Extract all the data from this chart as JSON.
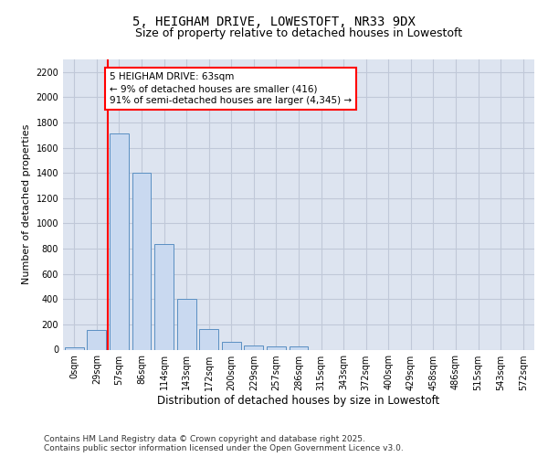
{
  "title_line1": "5, HEIGHAM DRIVE, LOWESTOFT, NR33 9DX",
  "title_line2": "Size of property relative to detached houses in Lowestoft",
  "xlabel": "Distribution of detached houses by size in Lowestoft",
  "ylabel": "Number of detached properties",
  "bin_labels": [
    "0sqm",
    "29sqm",
    "57sqm",
    "86sqm",
    "114sqm",
    "143sqm",
    "172sqm",
    "200sqm",
    "229sqm",
    "257sqm",
    "286sqm",
    "315sqm",
    "343sqm",
    "372sqm",
    "400sqm",
    "429sqm",
    "458sqm",
    "486sqm",
    "515sqm",
    "543sqm",
    "572sqm"
  ],
  "bar_values": [
    15,
    155,
    1710,
    1400,
    835,
    400,
    165,
    65,
    35,
    28,
    28,
    0,
    0,
    0,
    0,
    0,
    0,
    0,
    0,
    0,
    0
  ],
  "bar_color": "#c9d9f0",
  "bar_edge_color": "#5a8fc2",
  "grid_color": "#c0c8d8",
  "background_color": "#dde4f0",
  "vline_color": "red",
  "vline_x_index": 2,
  "annotation_text": "5 HEIGHAM DRIVE: 63sqm\n← 9% of detached houses are smaller (416)\n91% of semi-detached houses are larger (4,345) →",
  "annotation_box_color": "red",
  "footer_line1": "Contains HM Land Registry data © Crown copyright and database right 2025.",
  "footer_line2": "Contains public sector information licensed under the Open Government Licence v3.0.",
  "ylim": [
    0,
    2300
  ],
  "yticks": [
    0,
    200,
    400,
    600,
    800,
    1000,
    1200,
    1400,
    1600,
    1800,
    2000,
    2200
  ],
  "title_fontsize": 10,
  "subtitle_fontsize": 9,
  "xlabel_fontsize": 8.5,
  "ylabel_fontsize": 8,
  "tick_fontsize": 7,
  "annotation_fontsize": 7.5,
  "footer_fontsize": 6.5
}
